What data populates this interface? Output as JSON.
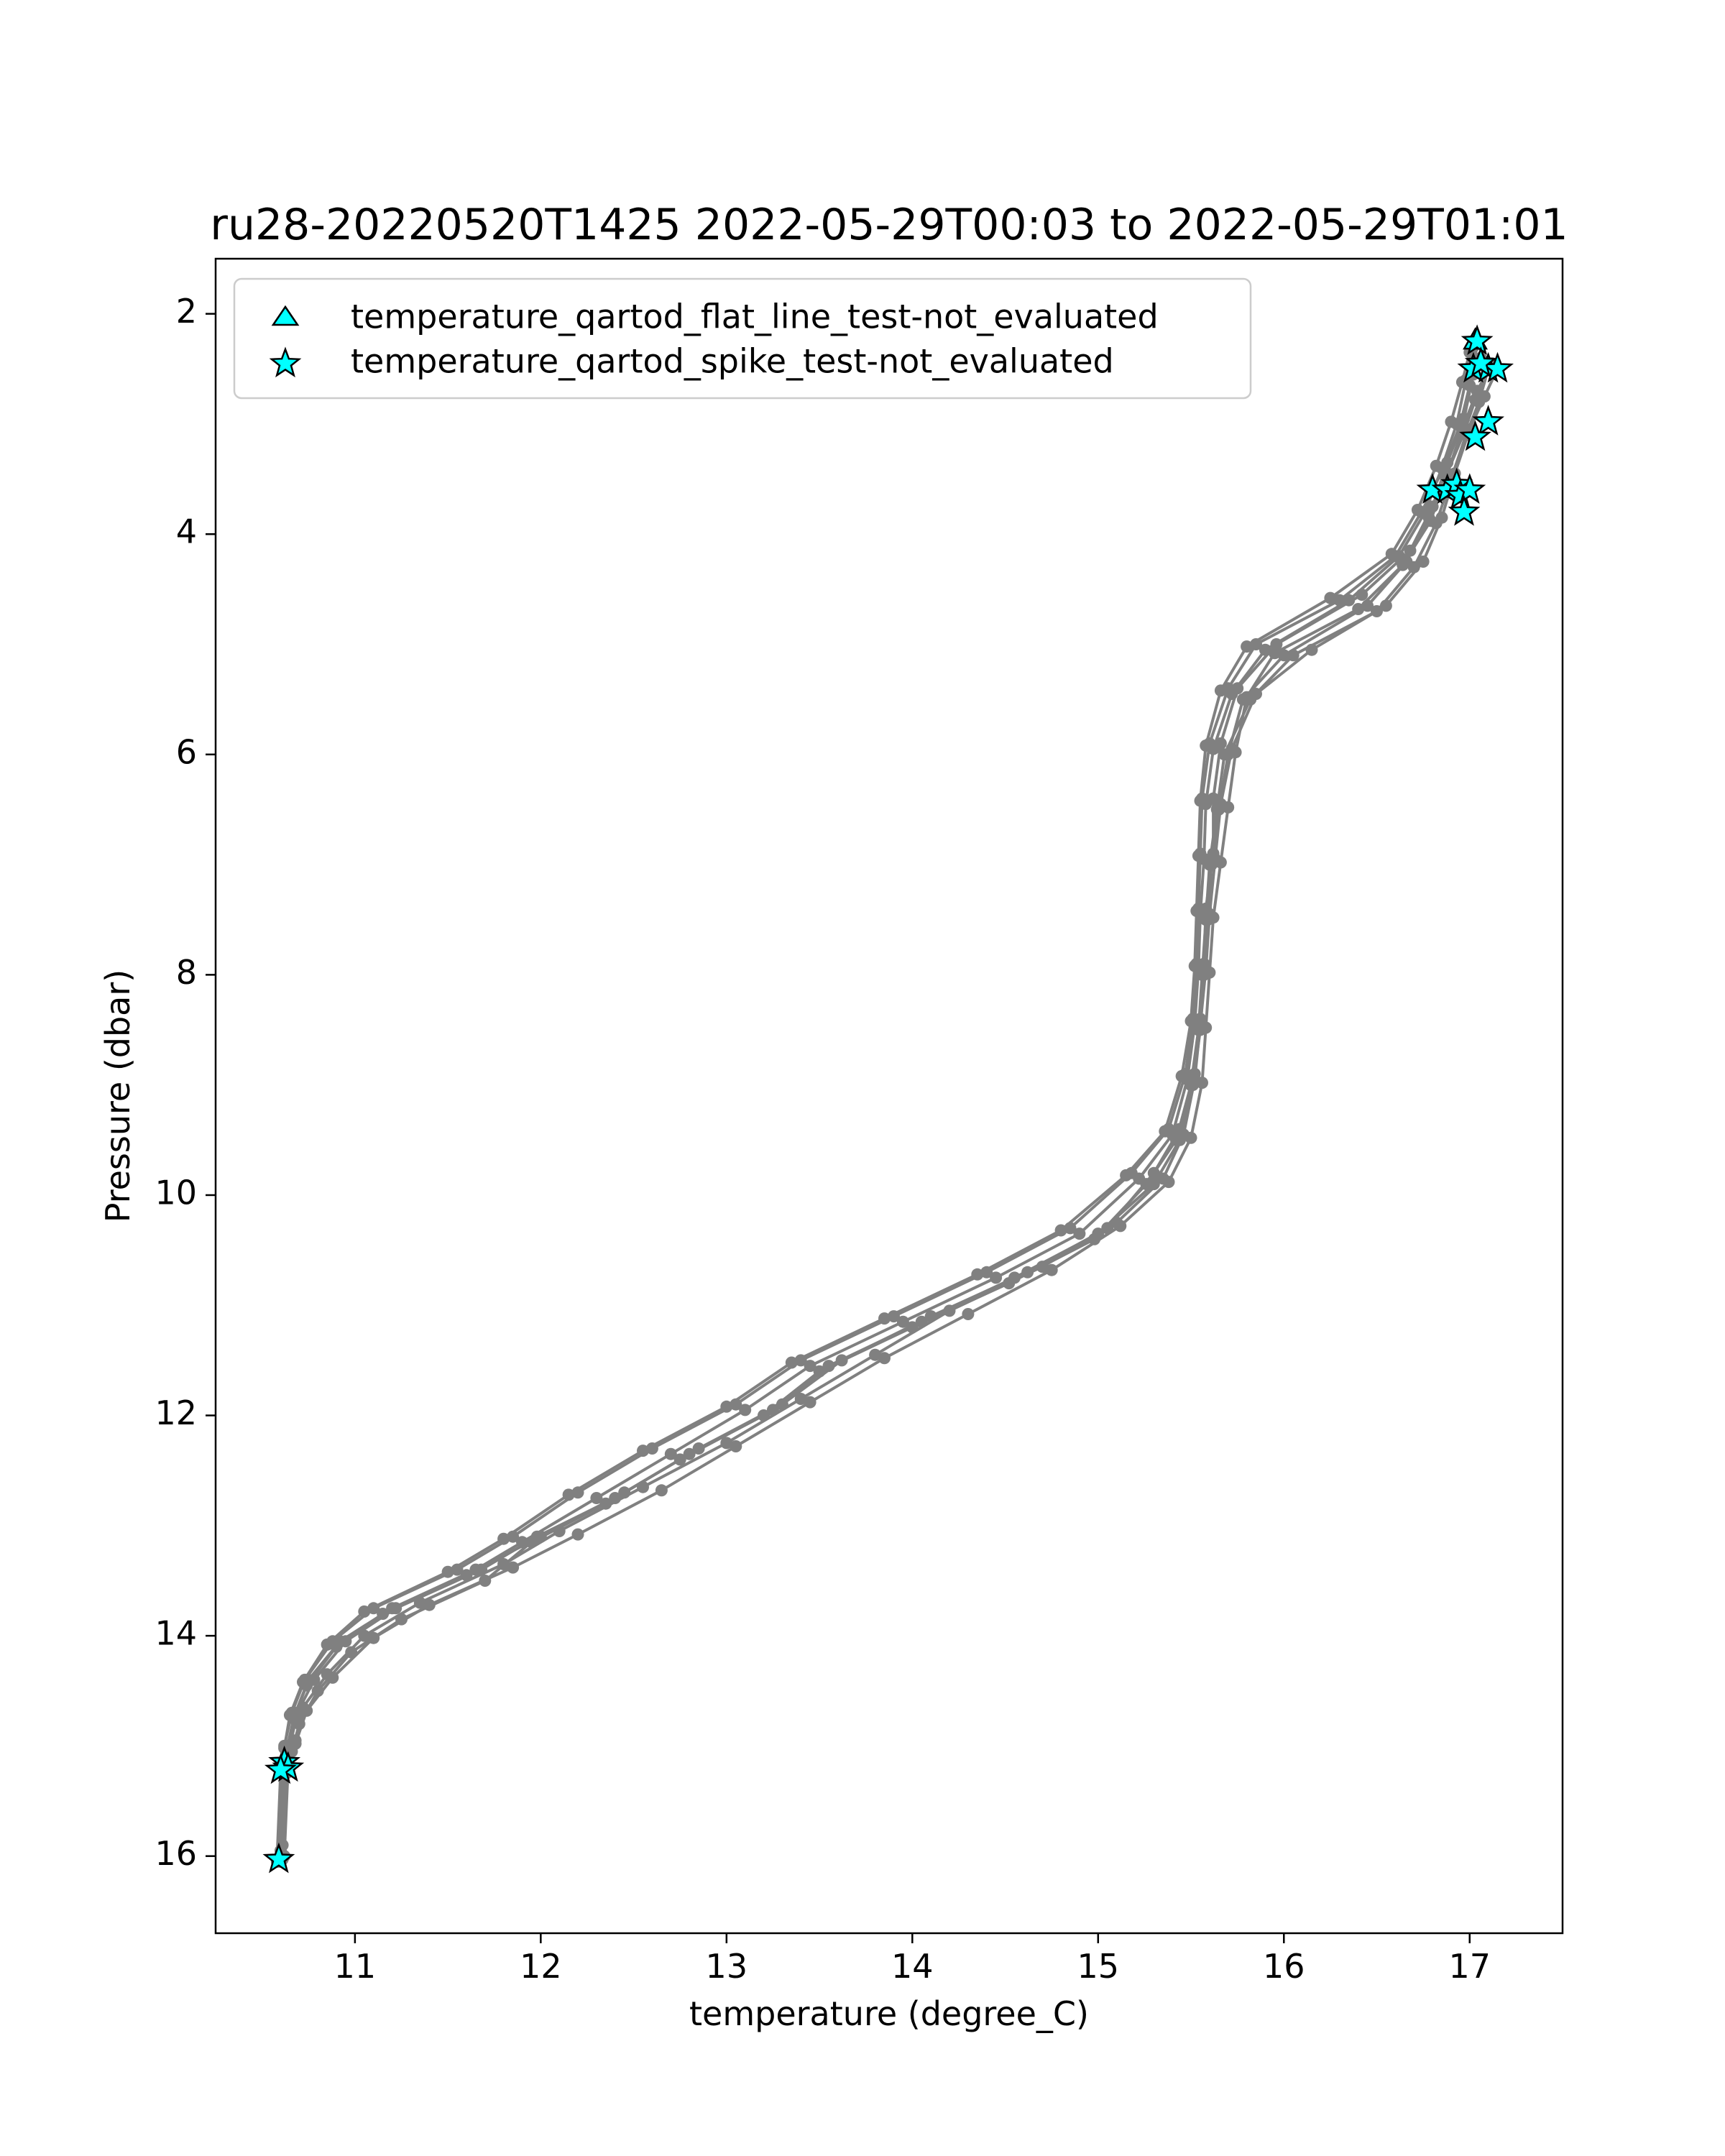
{
  "chart_data": {
    "type": "scatter",
    "title": "ru28-20220520T1425 2022-05-29T00:03 to 2022-05-29T01:01",
    "xlabel": "temperature (degree_C)",
    "ylabel": "Pressure (dbar)",
    "xlim": [
      10.25,
      17.5
    ],
    "ylim": [
      16.7,
      1.5
    ],
    "y_inverted": true,
    "xticks": [
      11,
      12,
      13,
      14,
      15,
      16,
      17
    ],
    "xtick_labels": [
      "11",
      "12",
      "13",
      "14",
      "15",
      "16",
      "17"
    ],
    "yticks": [
      2,
      4,
      6,
      8,
      10,
      12,
      14,
      16
    ],
    "ytick_labels": [
      "2",
      "4",
      "6",
      "8",
      "10",
      "12",
      "14",
      "16"
    ],
    "grid": false,
    "legend_position": "upper-left",
    "legend": [
      {
        "label": "temperature_qartod_flat_line_test-not_evaluated",
        "marker": "triangle",
        "color": "#00ffff"
      },
      {
        "label": "temperature_qartod_spike_test-not_evaluated",
        "marker": "star",
        "color": "#00ffff"
      }
    ],
    "profile_color": "#808080",
    "flag_color": "#00ffff",
    "series": [
      {
        "x": [
          17.04,
          17.02,
          16.97,
          16.88,
          16.8,
          16.68,
          16.42,
          15.96,
          15.75,
          15.66,
          15.62,
          15.62,
          15.58,
          15.57,
          15.55,
          15.52,
          15.44,
          15.3,
          15.05,
          14.62,
          14.1,
          13.62,
          13.3,
          12.85,
          12.45,
          12.0,
          11.65,
          11.2,
          10.92,
          10.75,
          10.68,
          10.64,
          10.62,
          10.6
        ],
        "y": [
          2.25,
          2.55,
          2.95,
          3.35,
          3.75,
          4.15,
          4.55,
          5.0,
          5.4,
          5.9,
          6.4,
          6.9,
          7.4,
          7.9,
          8.4,
          8.9,
          9.4,
          9.8,
          10.3,
          10.7,
          11.1,
          11.5,
          11.9,
          12.3,
          12.7,
          13.1,
          13.4,
          13.75,
          14.05,
          14.4,
          14.7,
          15.0,
          15.2,
          16.05
        ]
      },
      {
        "x": [
          17.1,
          17.05,
          16.98,
          16.9,
          16.82,
          16.7,
          16.5,
          16.05,
          15.82,
          15.68,
          15.64,
          15.6,
          15.58,
          15.56,
          15.54,
          15.5,
          15.42,
          15.26,
          14.98,
          14.52,
          14.0,
          13.5,
          13.2,
          12.75,
          12.35,
          11.95,
          11.7,
          11.25,
          10.98,
          10.8,
          10.7,
          10.66,
          10.63,
          10.61
        ],
        "y": [
          2.5,
          2.8,
          3.1,
          3.5,
          3.9,
          4.3,
          4.7,
          5.1,
          5.5,
          6.0,
          6.5,
          7.0,
          7.5,
          8.0,
          8.5,
          9.0,
          9.5,
          9.9,
          10.4,
          10.8,
          11.2,
          11.6,
          12.0,
          12.4,
          12.8,
          13.15,
          13.5,
          13.85,
          14.15,
          14.5,
          14.8,
          15.05,
          15.25,
          15.9
        ]
      },
      {
        "x": [
          17.15,
          17.08,
          17.0,
          16.92,
          16.85,
          16.75,
          16.55,
          16.15,
          15.85,
          15.72,
          15.66,
          15.63,
          15.6,
          15.58,
          15.55,
          15.52,
          15.46,
          15.35,
          15.1,
          14.7,
          14.2,
          13.8,
          13.4,
          13.0,
          12.55,
          12.1,
          11.8,
          11.35,
          11.05,
          10.85,
          10.72,
          10.68,
          10.64,
          10.62
        ],
        "y": [
          2.5,
          2.75,
          3.05,
          3.45,
          3.85,
          4.25,
          4.65,
          5.05,
          5.45,
          5.95,
          6.45,
          6.95,
          7.45,
          7.95,
          8.45,
          8.95,
          9.45,
          9.85,
          10.25,
          10.65,
          11.05,
          11.45,
          11.85,
          12.25,
          12.65,
          13.05,
          13.35,
          13.7,
          14.0,
          14.35,
          14.65,
          14.95,
          15.2,
          16.0
        ]
      },
      {
        "x": [
          17.02,
          16.98,
          16.93,
          16.85,
          16.76,
          16.62,
          16.35,
          15.9,
          15.72,
          15.62,
          15.58,
          15.57,
          15.55,
          15.54,
          15.52,
          15.48,
          15.4,
          15.22,
          14.9,
          14.45,
          13.95,
          13.45,
          13.1,
          12.7,
          12.3,
          11.9,
          11.6,
          11.15,
          10.9,
          10.74,
          10.67,
          10.63,
          10.61,
          10.59
        ],
        "y": [
          2.3,
          2.6,
          3.0,
          3.4,
          3.8,
          4.2,
          4.6,
          5.05,
          5.45,
          5.95,
          6.45,
          6.95,
          7.45,
          7.95,
          8.45,
          8.95,
          9.45,
          9.85,
          10.35,
          10.75,
          11.15,
          11.55,
          11.95,
          12.35,
          12.75,
          13.15,
          13.45,
          13.8,
          14.1,
          14.45,
          14.75,
          15.05,
          15.25,
          16.05
        ]
      },
      {
        "x": [
          17.12,
          17.04,
          16.96,
          16.88,
          16.78,
          16.66,
          16.45,
          16.0,
          15.78,
          15.7,
          15.65,
          15.61,
          15.59,
          15.57,
          15.55,
          15.51,
          15.44,
          15.3,
          15.0,
          14.55,
          14.05,
          13.55,
          13.25,
          12.8,
          12.4,
          11.98,
          11.68,
          11.22,
          10.95,
          10.78,
          10.69,
          10.65,
          10.62,
          10.6
        ],
        "y": [
          2.45,
          2.7,
          3.05,
          3.45,
          3.85,
          4.25,
          4.65,
          5.1,
          5.5,
          6.0,
          6.5,
          7.0,
          7.5,
          8.0,
          8.5,
          9.0,
          9.5,
          9.9,
          10.35,
          10.75,
          11.15,
          11.55,
          11.95,
          12.35,
          12.75,
          13.1,
          13.4,
          13.75,
          14.05,
          14.4,
          14.7,
          15.0,
          15.2,
          15.95
        ]
      },
      {
        "x": [
          17.06,
          17.0,
          16.95,
          16.86,
          16.74,
          16.6,
          16.3,
          15.85,
          15.7,
          15.6,
          15.56,
          15.55,
          15.54,
          15.53,
          15.51,
          15.47,
          15.38,
          15.18,
          14.85,
          14.4,
          13.9,
          13.4,
          13.05,
          12.6,
          12.2,
          11.85,
          11.55,
          11.1,
          10.88,
          10.73,
          10.66,
          10.62,
          10.6,
          10.59
        ],
        "y": [
          2.4,
          2.65,
          3.0,
          3.4,
          3.8,
          4.2,
          4.6,
          5.0,
          5.4,
          5.9,
          6.4,
          6.9,
          7.4,
          7.9,
          8.4,
          8.9,
          9.4,
          9.8,
          10.3,
          10.7,
          11.1,
          11.5,
          11.9,
          12.3,
          12.7,
          13.1,
          13.4,
          13.75,
          14.05,
          14.4,
          14.7,
          15.0,
          15.2,
          16.02
        ]
      },
      {
        "x": [
          17.1,
          17.03,
          16.97,
          16.87,
          16.79,
          16.64,
          16.4,
          15.95,
          15.8,
          15.74,
          15.7,
          15.66,
          15.62,
          15.6,
          15.58,
          15.56,
          15.5,
          15.38,
          15.12,
          14.75,
          14.3,
          13.85,
          13.45,
          13.05,
          12.65,
          12.2,
          11.85,
          11.4,
          11.1,
          10.88,
          10.74,
          10.68,
          10.64,
          10.61
        ],
        "y": [
          2.48,
          2.78,
          3.08,
          3.48,
          3.88,
          4.28,
          4.68,
          5.08,
          5.48,
          5.98,
          6.48,
          6.98,
          7.48,
          7.98,
          8.48,
          8.98,
          9.48,
          9.88,
          10.28,
          10.68,
          11.08,
          11.48,
          11.88,
          12.28,
          12.68,
          13.08,
          13.38,
          13.72,
          14.02,
          14.38,
          14.68,
          14.98,
          15.22,
          16.03
        ]
      },
      {
        "x": [
          17.0,
          16.96,
          16.9,
          16.82,
          16.72,
          16.58,
          16.25,
          15.8,
          15.66,
          15.58,
          15.55,
          15.54,
          15.53,
          15.52,
          15.5,
          15.45,
          15.36,
          15.15,
          14.8,
          14.35,
          13.85,
          13.35,
          13.0,
          12.55,
          12.15,
          11.8,
          11.5,
          11.05,
          10.85,
          10.72,
          10.65,
          10.62,
          10.6,
          10.58
        ],
        "y": [
          2.35,
          2.62,
          2.98,
          3.38,
          3.78,
          4.18,
          4.58,
          5.02,
          5.42,
          5.92,
          6.42,
          6.92,
          7.42,
          7.92,
          8.42,
          8.92,
          9.42,
          9.82,
          10.32,
          10.72,
          11.12,
          11.52,
          11.92,
          12.32,
          12.72,
          13.12,
          13.42,
          13.78,
          14.08,
          14.42,
          14.72,
          15.02,
          15.22,
          16.05
        ]
      }
    ],
    "flat_line_not_evaluated": [
      {
        "x": 17.03,
        "y": 2.25
      }
    ],
    "spike_not_evaluated": [
      {
        "x": 17.04,
        "y": 2.25
      },
      {
        "x": 17.02,
        "y": 2.5
      },
      {
        "x": 17.1,
        "y": 2.5
      },
      {
        "x": 17.15,
        "y": 2.5
      },
      {
        "x": 17.06,
        "y": 2.45
      },
      {
        "x": 17.1,
        "y": 2.98
      },
      {
        "x": 17.03,
        "y": 3.12
      },
      {
        "x": 16.8,
        "y": 3.6
      },
      {
        "x": 16.88,
        "y": 3.6
      },
      {
        "x": 16.93,
        "y": 3.55
      },
      {
        "x": 16.95,
        "y": 3.65
      },
      {
        "x": 17.0,
        "y": 3.6
      },
      {
        "x": 16.97,
        "y": 3.8
      },
      {
        "x": 10.62,
        "y": 15.15
      },
      {
        "x": 10.64,
        "y": 15.2
      },
      {
        "x": 10.6,
        "y": 15.22
      },
      {
        "x": 10.59,
        "y": 16.03
      }
    ]
  }
}
